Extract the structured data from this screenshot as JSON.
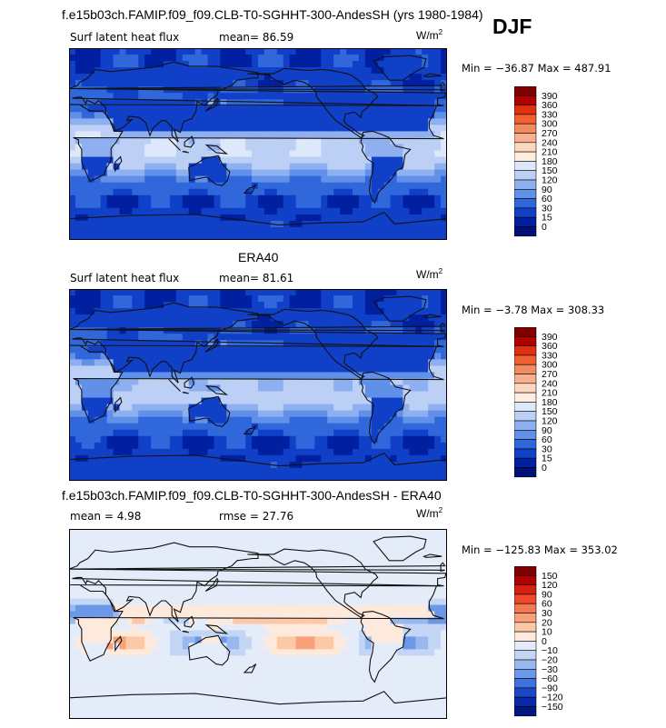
{
  "figure_title": "f.e15b03ch.FAMIP.f09_f09.CLB-T0-SGHHT-300-AndesSH (yrs 1980-1984)",
  "season": "DJF",
  "panels": [
    {
      "title": "",
      "field_label": "Surf latent heat flux",
      "stat_text": "mean=  86.59",
      "units_base": "W/m",
      "units_sup": "2",
      "minmax_text": "Min = −36.87 Max = 487.91",
      "colorbar_levels": [
        "390",
        "360",
        "330",
        "300",
        "270",
        "240",
        "210",
        "180",
        "150",
        "120",
        "90",
        "60",
        "30",
        "15",
        "0"
      ],
      "colors": [
        "#800000",
        "#b00000",
        "#e03010",
        "#f06030",
        "#f48a60",
        "#f8b090",
        "#fcd8c0",
        "#ffeee0",
        "#dde8fb",
        "#bcd0f6",
        "#8eb0f0",
        "#6090e8",
        "#3068dc",
        "#1040c8",
        "#0020a0",
        "#001078"
      ]
    },
    {
      "title": "ERA40",
      "field_label": "Surf latent heat flux",
      "stat_text": "mean=  81.61",
      "units_base": "W/m",
      "units_sup": "2",
      "minmax_text": "Min =  −3.78 Max = 308.33",
      "colorbar_levels": [
        "390",
        "360",
        "330",
        "300",
        "270",
        "240",
        "210",
        "180",
        "150",
        "120",
        "90",
        "60",
        "30",
        "15",
        "0"
      ],
      "colors": [
        "#800000",
        "#b00000",
        "#e03010",
        "#f06030",
        "#f48a60",
        "#f8b090",
        "#fcd8c0",
        "#ffeee0",
        "#dde8fb",
        "#bcd0f6",
        "#8eb0f0",
        "#6090e8",
        "#3068dc",
        "#1040c8",
        "#0020a0",
        "#001078"
      ]
    },
    {
      "title": "f.e15b03ch.FAMIP.f09_f09.CLB-T0-SGHHT-300-AndesSH - ERA40",
      "field_label": "mean =   4.98",
      "stat_text": "rmse =  27.76",
      "units_base": "W/m",
      "units_sup": "2",
      "minmax_text": "Min = −125.83 Max = 353.02",
      "colorbar_levels": [
        "150",
        "120",
        "90",
        "60",
        "30",
        "20",
        "10",
        "0",
        "−10",
        "−20",
        "−30",
        "−60",
        "−90",
        "−120",
        "−150"
      ],
      "colors": [
        "#800000",
        "#b00000",
        "#d82010",
        "#ec4a28",
        "#f4784f",
        "#f8a078",
        "#fcc8a8",
        "#feeadc",
        "#e4ecfa",
        "#c4d6f6",
        "#98b8f0",
        "#6c98e8",
        "#4070dc",
        "#1c48c8",
        "#0828a8",
        "#001880"
      ]
    }
  ]
}
